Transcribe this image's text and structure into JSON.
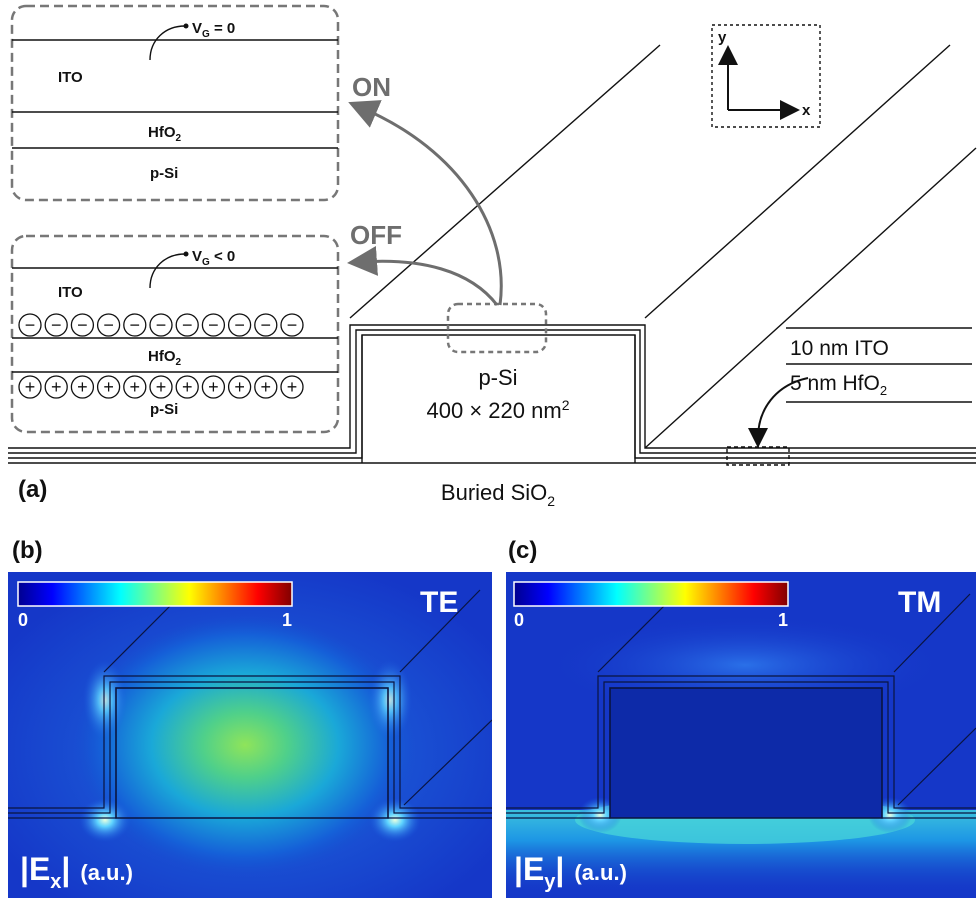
{
  "panel_a": {
    "label": "(a)",
    "on_box": {
      "gate_label": "V",
      "gate_sub": "G",
      "gate_rel": " = 0",
      "layer_ito": "ITO",
      "layer_hfo2": "HfO",
      "layer_hfo2_sub": "2",
      "layer_psi": "p-Si"
    },
    "off_box": {
      "gate_label": "V",
      "gate_sub": "G",
      "gate_rel": " < 0",
      "layer_ito": "ITO",
      "layer_hfo2": "HfO",
      "layer_hfo2_sub": "2",
      "layer_psi": "p-Si",
      "negative_count": 11,
      "positive_count": 11,
      "negative_symbol": "−",
      "positive_symbol": "+"
    },
    "arrow_on_label": "ON",
    "arrow_off_label": "OFF",
    "axes": {
      "y": "y",
      "x": "x"
    },
    "core_material": "p-Si",
    "core_dims": "400 × 220 nm",
    "core_dims_sup": "2",
    "legend_ito": "10 nm ITO",
    "legend_hfo2": "5 nm HfO",
    "legend_hfo2_sub": "2",
    "substrate": "Buried SiO",
    "substrate_sub": "2"
  },
  "panel_b": {
    "label": "(b)",
    "mode": "TE",
    "colorbar_min": "0",
    "colorbar_max": "1",
    "field": "|E",
    "field_sub": "x",
    "field_end": "|",
    "units": "(a.u.)"
  },
  "panel_c": {
    "label": "(c)",
    "mode": "TM",
    "colorbar_min": "0",
    "colorbar_max": "1",
    "field": "|E",
    "field_sub": "y",
    "field_end": "|",
    "units": "(a.u.)"
  },
  "colors": {
    "line": "#111111",
    "dashed_gray": "#777777",
    "arrow_gray": "#6e6e6e",
    "field_bg": "#1537c8",
    "field_deep": "#0b1e9c"
  }
}
